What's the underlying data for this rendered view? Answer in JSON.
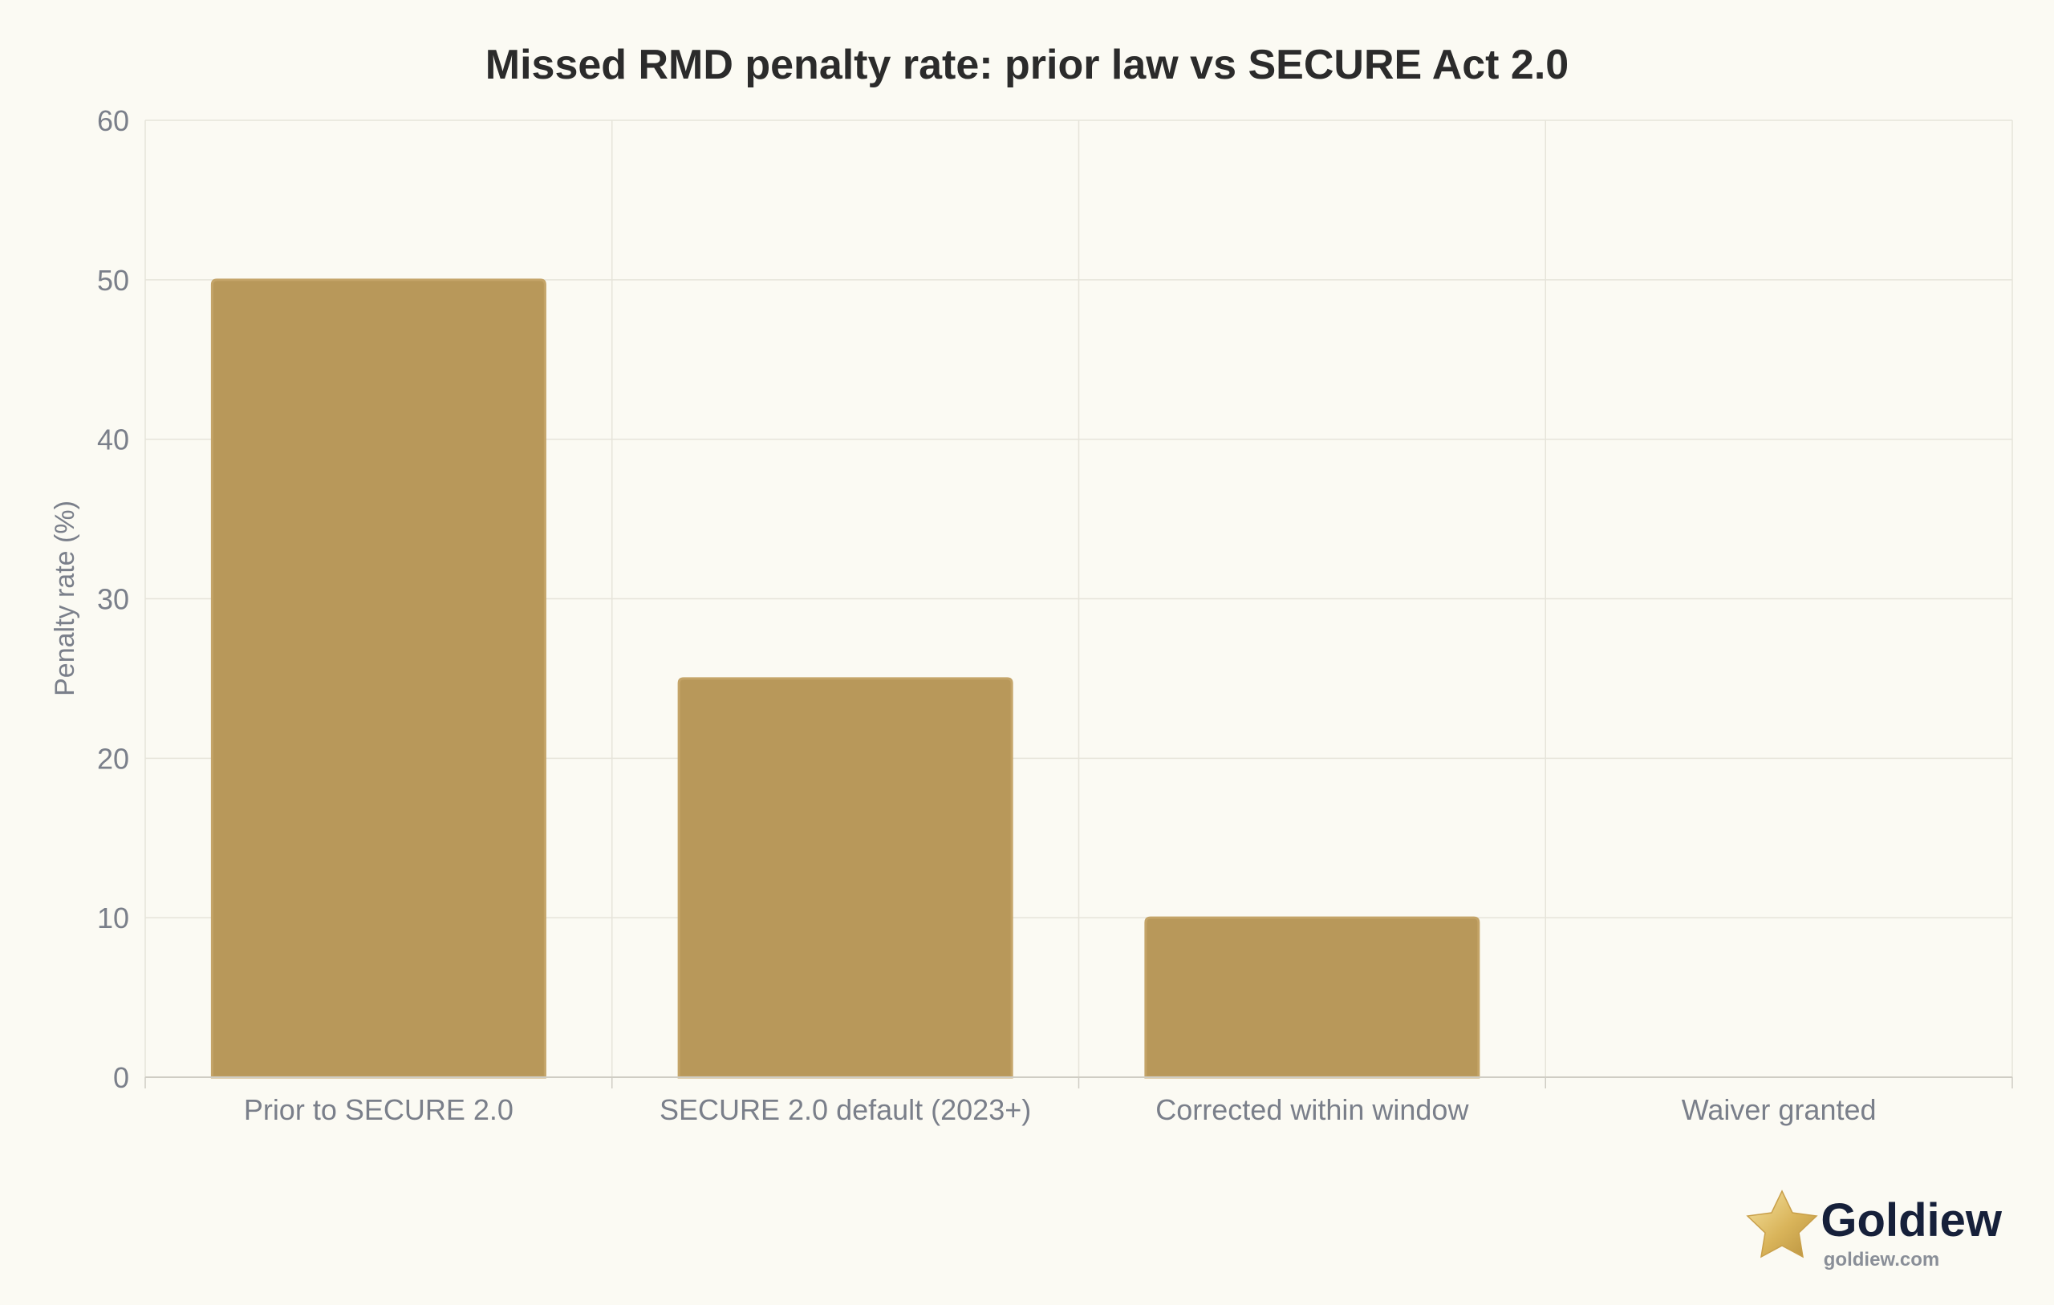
{
  "chart_data": {
    "type": "bar",
    "title": "Missed RMD penalty rate: prior law vs SECURE Act 2.0",
    "xlabel": "",
    "ylabel": "Penalty rate (%)",
    "categories": [
      "Prior to SECURE 2.0",
      "SECURE 2.0 default (2023+)",
      "Corrected within window",
      "Waiver granted"
    ],
    "values": [
      50,
      25,
      10,
      0
    ],
    "ylim": [
      0,
      60
    ],
    "yticks": [
      0,
      10,
      20,
      30,
      40,
      50,
      60
    ],
    "grid": true,
    "legend": "none"
  },
  "colors": {
    "bar": "#b8985a",
    "bar_border": "#c4a468",
    "grid": "#e6e4da",
    "axis": "#cfcdc4",
    "background": "#fbfaf3"
  },
  "brand": {
    "name": "Goldiew",
    "url": "goldiew.com",
    "icon": "gold-star-icon"
  }
}
